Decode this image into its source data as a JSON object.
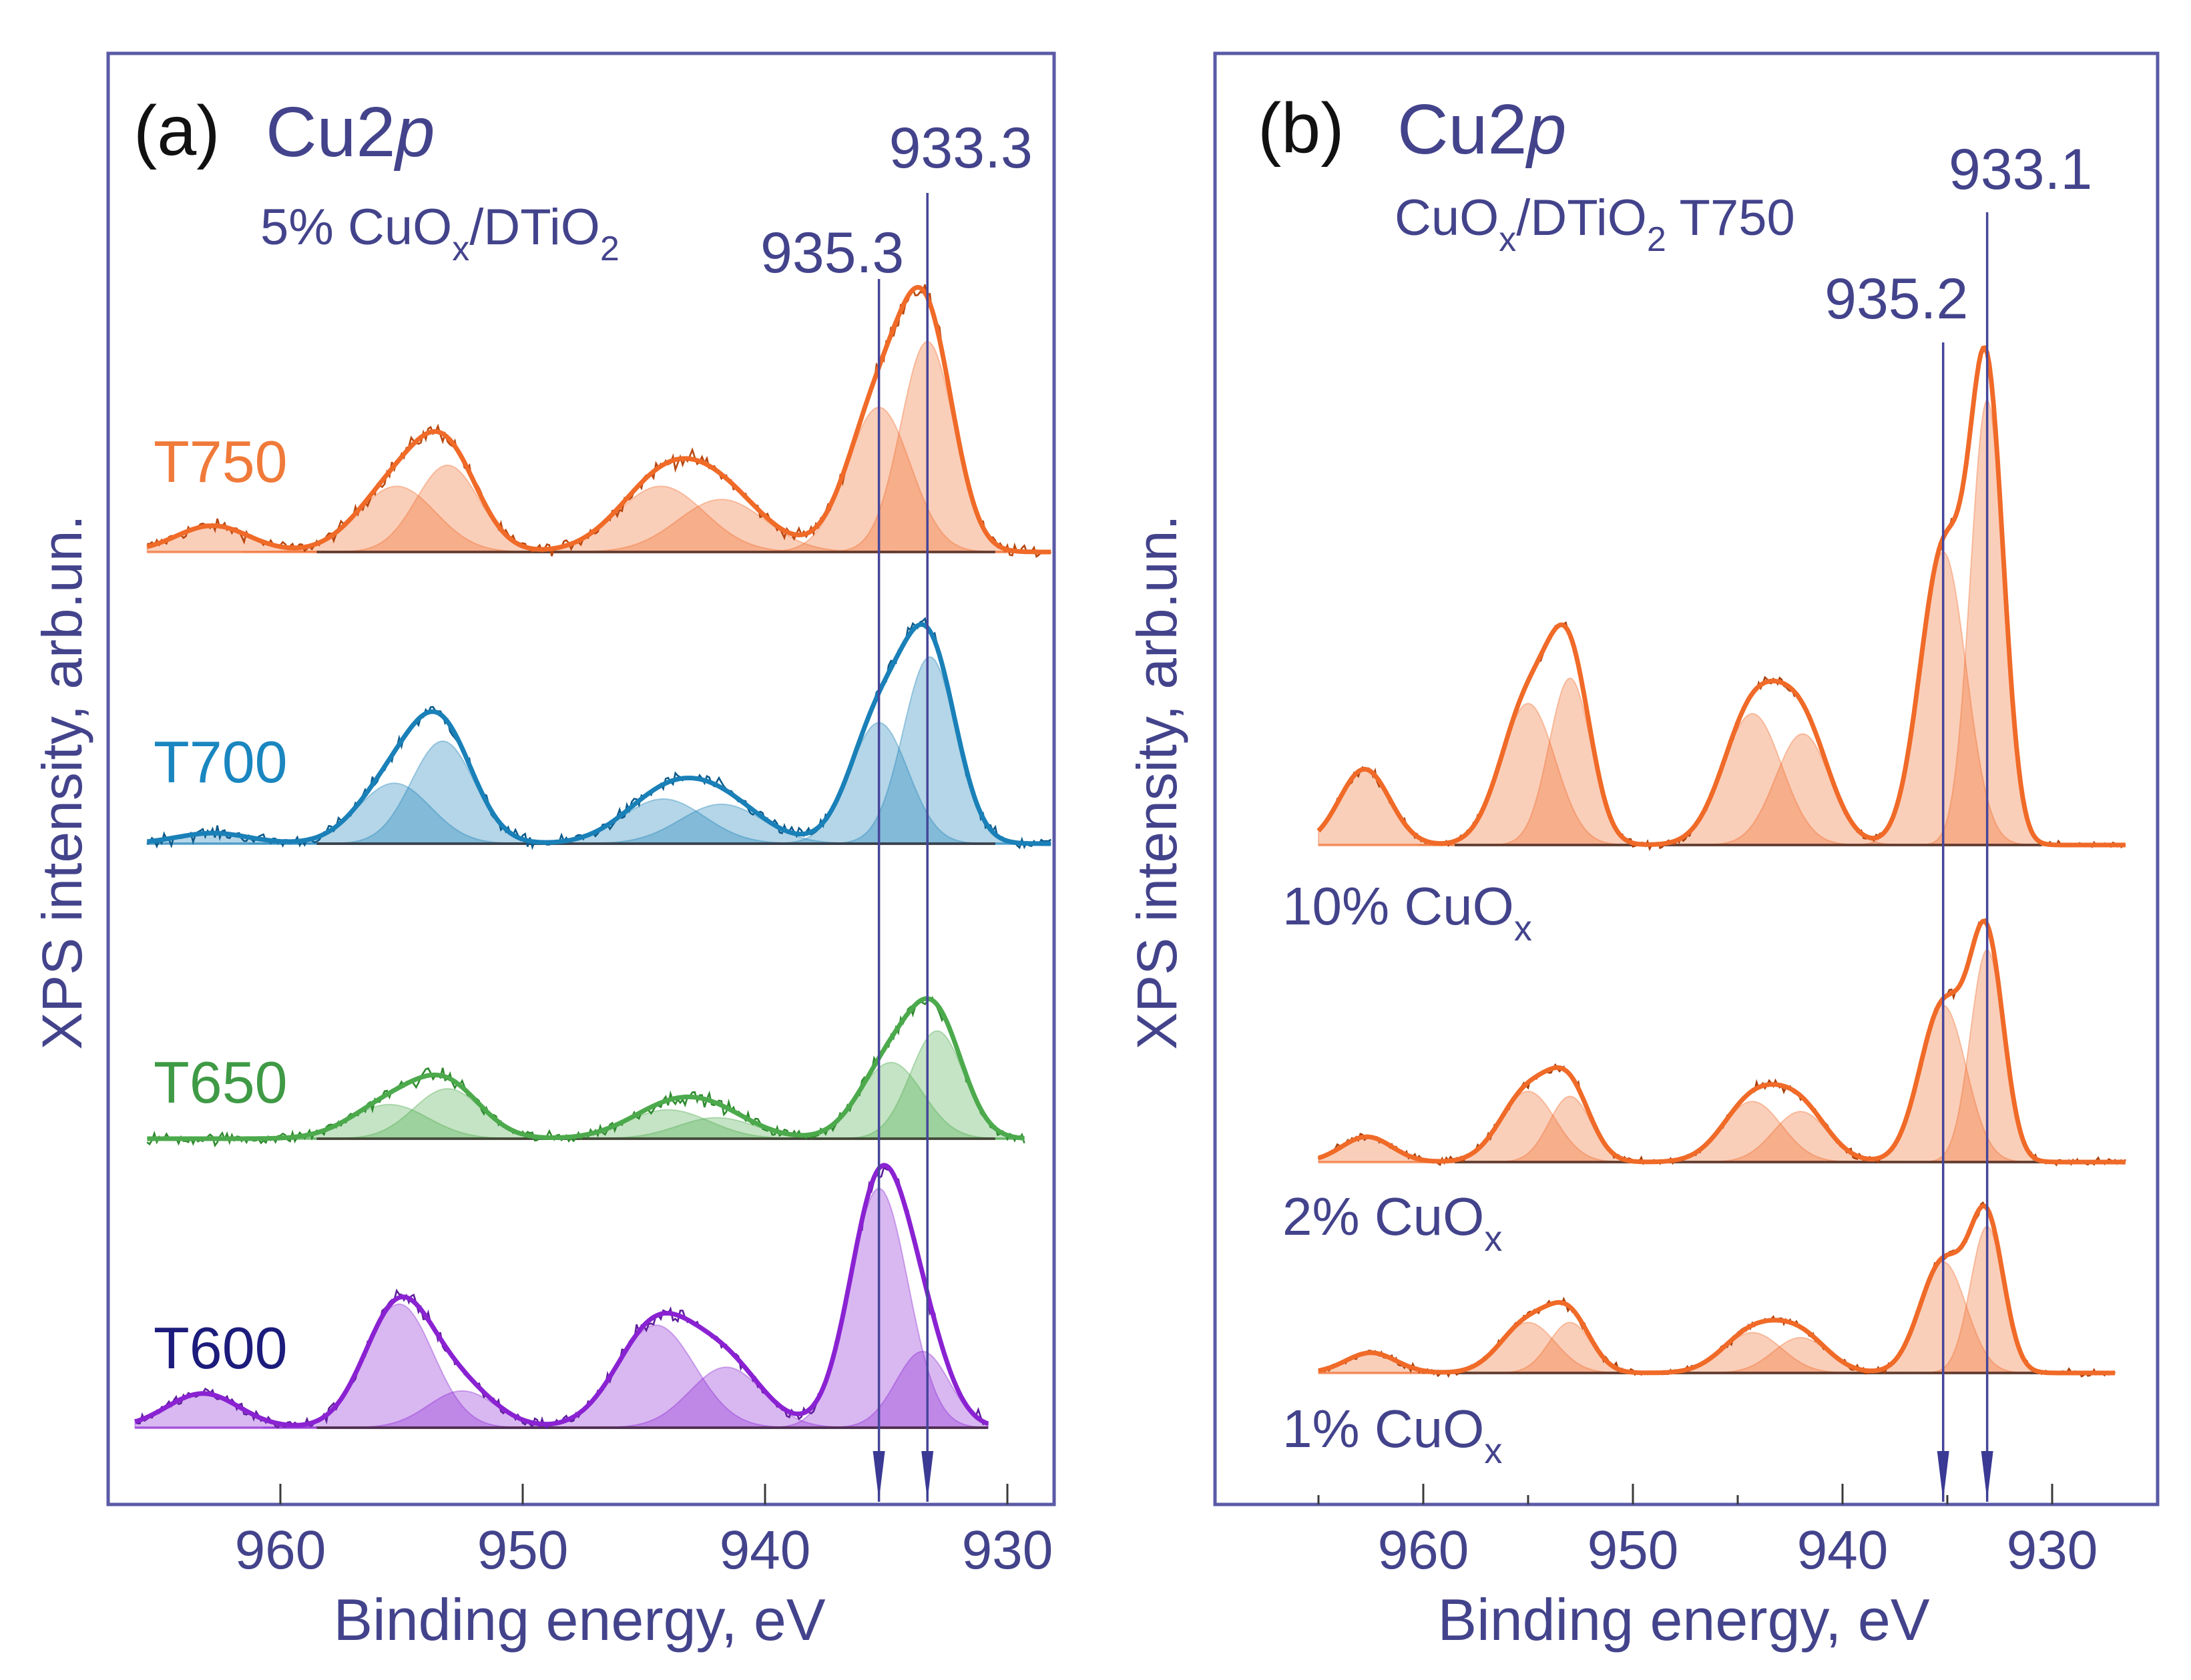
{
  "chart_data": [
    {
      "type": "line",
      "panel_label": "(a)",
      "title_main": "Cu2",
      "title_italic": "p",
      "subtitle_parts": [
        "5% CuO",
        "x",
        "/DTiO",
        "2"
      ],
      "xlabel": "Binding energy, eV",
      "ylabel": "XPS intensity, arb.un.",
      "xlim": [
        967,
        928
      ],
      "x_reversed": true,
      "x_ticks": [
        "960",
        "950",
        "940",
        "930"
      ],
      "x_tick_values": [
        960,
        950,
        940,
        930
      ],
      "reference_lines": [
        {
          "label": "935.3",
          "x": 935.3
        },
        {
          "label": "933.3",
          "x": 933.3
        }
      ],
      "series": [
        {
          "name": "T750",
          "color": "#f06a28",
          "data_color": "#b8470f",
          "label_color": "#f07a3a",
          "x_range": [
            965.5,
            928.2
          ],
          "components": [
            [
              962.8,
              10,
              1.5
            ],
            [
              955.2,
              25,
              1.6
            ],
            [
              953.1,
              33,
              1.3
            ],
            [
              944.3,
              25,
              1.8
            ],
            [
              941.8,
              20,
              1.8
            ],
            [
              935.3,
              55,
              1.3
            ],
            [
              933.3,
              80,
              1.1
            ]
          ]
        },
        {
          "name": "T700",
          "color": "#1a80b8",
          "data_color": "#0d5a8a",
          "label_color": "#1a86c0",
          "x_range": [
            965.5,
            928.2
          ],
          "components": [
            [
              962.8,
              4,
              1.5
            ],
            [
              955.3,
              23,
              1.5
            ],
            [
              953.3,
              39,
              1.3
            ],
            [
              944.2,
              17,
              1.7
            ],
            [
              941.8,
              15,
              1.7
            ],
            [
              935.3,
              46,
              1.2
            ],
            [
              933.2,
              71,
              1.1
            ]
          ]
        },
        {
          "name": "T650",
          "color": "#4caa4c",
          "data_color": "#2f8a2f",
          "label_color": "#3f9a45",
          "x_range": [
            965.5,
            929.3
          ],
          "components": [
            [
              955.5,
              13,
              1.6
            ],
            [
              953.1,
              19,
              1.4
            ],
            [
              944.0,
              11,
              1.7
            ],
            [
              942.0,
              8,
              1.6
            ],
            [
              934.8,
              29,
              1.3
            ],
            [
              932.9,
              41,
              1.1
            ]
          ]
        },
        {
          "name": "T600",
          "color": "#8a22d2",
          "data_color": "#5e1f9a",
          "label_color": "#1c1c7c",
          "x_range": [
            966.0,
            930.8
          ],
          "components": [
            [
              963.2,
              13,
              1.5
            ],
            [
              955.1,
              47,
              1.4
            ],
            [
              952.5,
              14,
              1.4
            ],
            [
              944.5,
              39,
              1.6
            ],
            [
              941.6,
              23,
              1.5
            ],
            [
              935.3,
              91,
              1.2
            ],
            [
              933.5,
              29,
              1.1
            ]
          ]
        }
      ]
    },
    {
      "type": "line",
      "panel_label": "(b)",
      "title_main": "Cu2",
      "title_italic": "p",
      "subtitle_parts": [
        "CuO",
        "x",
        "/DTiO",
        "2",
        " T750"
      ],
      "xlabel": "Binding energy, eV",
      "ylabel": "XPS intensity, arb.un.",
      "xlim": [
        970,
        925
      ],
      "x_reversed": true,
      "x_ticks": [
        "960",
        "950",
        "940",
        "930"
      ],
      "x_tick_values": [
        960,
        950,
        940,
        930
      ],
      "x_minor_tick_values": [
        965,
        955,
        945,
        935
      ],
      "reference_lines": [
        {
          "label": "935.2",
          "x": 935.2
        },
        {
          "label": "933.1",
          "x": 933.1
        }
      ],
      "series": [
        {
          "name": "10% CuO",
          "name_sub": "x",
          "color": "#f06a28",
          "data_color": "#a8400c",
          "x_range": [
            965.0,
            926.5
          ],
          "components": [
            [
              962.8,
              15,
              1.2
            ],
            [
              955.0,
              28,
              1.3
            ],
            [
              953.0,
              33,
              1.0
            ],
            [
              944.3,
              26,
              1.4
            ],
            [
              941.9,
              22,
              1.3
            ],
            [
              935.2,
              58,
              1.1
            ],
            [
              933.1,
              88,
              0.8
            ]
          ]
        },
        {
          "name": "2% CuO",
          "name_sub": "x",
          "color": "#f06a28",
          "data_color": "#a8400c",
          "x_range": [
            965.0,
            926.5
          ],
          "components": [
            [
              962.7,
              5,
              1.2
            ],
            [
              955.0,
              14,
              1.3
            ],
            [
              953.0,
              13,
              1.0
            ],
            [
              944.3,
              12,
              1.4
            ],
            [
              942.0,
              10,
              1.3
            ],
            [
              935.2,
              31,
              1.1
            ],
            [
              933.1,
              42,
              0.8
            ]
          ]
        },
        {
          "name": "1% CuO",
          "name_sub": "x",
          "color": "#f06a28",
          "data_color": "#a8400c",
          "x_range": [
            965.0,
            927.0
          ],
          "components": [
            [
              962.5,
              4,
              1.2
            ],
            [
              955.0,
              10,
              1.3
            ],
            [
              953.0,
              10,
              1.0
            ],
            [
              944.3,
              8,
              1.4
            ],
            [
              942.0,
              7,
              1.3
            ],
            [
              935.2,
              22,
              1.1
            ],
            [
              933.1,
              29,
              0.8
            ]
          ]
        }
      ]
    }
  ]
}
